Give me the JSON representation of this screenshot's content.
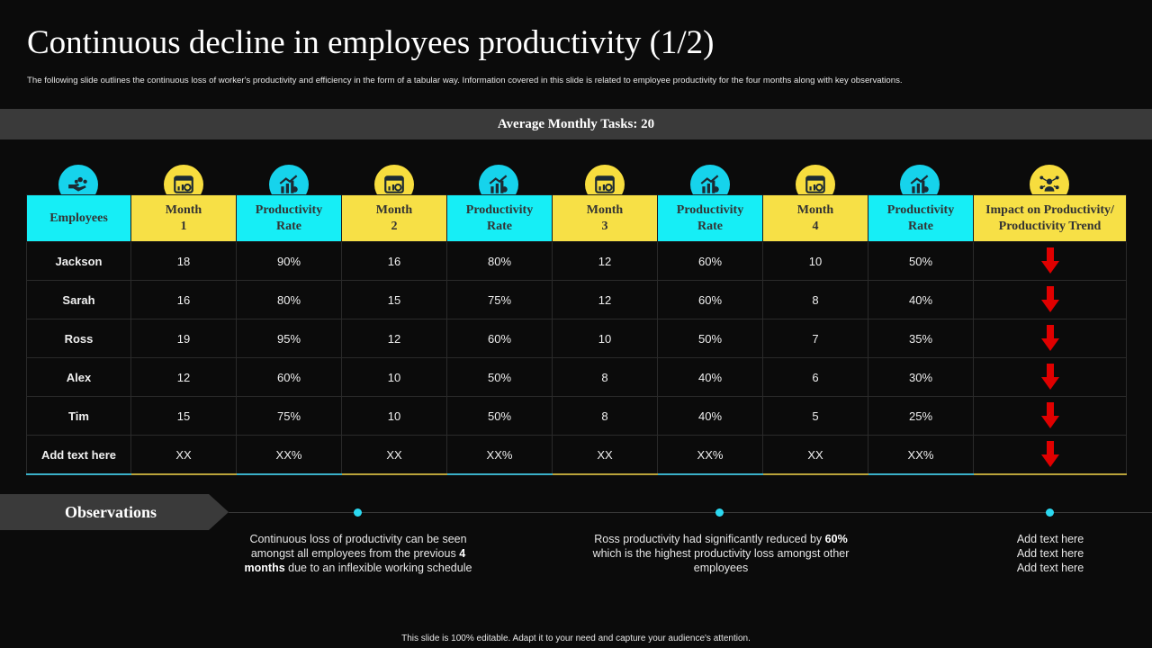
{
  "slide": {
    "title": "Continuous decline in employees productivity (1/2)",
    "subtitle": "The following slide outlines the continuous loss of worker's productivity and efficiency in the form of a tabular way. Information covered in this slide is related to employee productivity for the four months along with key observations.",
    "average_bar": "Average Monthly Tasks: 20",
    "footer": "This slide is 100% editable. Adapt it to your need and capture your audience's attention."
  },
  "table": {
    "headers": {
      "employees": "Employees",
      "month1": [
        "Month",
        "1"
      ],
      "rate1": [
        "Productivity",
        "Rate"
      ],
      "month2": [
        "Month",
        "2"
      ],
      "rate2": [
        "Productivity",
        "Rate"
      ],
      "month3": [
        "Month",
        "3"
      ],
      "rate3": [
        "Productivity",
        "Rate"
      ],
      "month4": [
        "Month",
        "4"
      ],
      "rate4": [
        "Productivity",
        "Rate"
      ],
      "impact": [
        "Impact on Productivity/",
        "Productivity Trend"
      ]
    },
    "header_icons": [
      "hand-coins-icon",
      "calendar-chart-icon",
      "growth-chart-icon",
      "calendar-chart-icon",
      "growth-chart-icon",
      "calendar-chart-icon",
      "growth-chart-icon",
      "calendar-chart-icon",
      "growth-chart-icon",
      "network-person-icon"
    ],
    "rows": [
      {
        "name": "Jackson",
        "cells": [
          "18",
          "90%",
          "16",
          "80%",
          "12",
          "60%",
          "10",
          "50%"
        ],
        "trend": "down"
      },
      {
        "name": "Sarah",
        "cells": [
          "16",
          "80%",
          "15",
          "75%",
          "12",
          "60%",
          "8",
          "40%"
        ],
        "trend": "down"
      },
      {
        "name": "Ross",
        "cells": [
          "19",
          "95%",
          "12",
          "60%",
          "10",
          "50%",
          "7",
          "35%"
        ],
        "trend": "down"
      },
      {
        "name": "Alex",
        "cells": [
          "12",
          "60%",
          "10",
          "50%",
          "8",
          "40%",
          "6",
          "30%"
        ],
        "trend": "down"
      },
      {
        "name": "Tim",
        "cells": [
          "15",
          "75%",
          "10",
          "50%",
          "8",
          "40%",
          "5",
          "25%"
        ],
        "trend": "down"
      },
      {
        "name": "Add text here",
        "cells": [
          "XX",
          "XX%",
          "XX",
          "XX%",
          "XX",
          "XX%",
          "XX",
          "XX%"
        ],
        "trend": "down"
      }
    ]
  },
  "observations": {
    "label": "Observations",
    "items": [
      {
        "pre": "Continuous loss of productivity can be seen amongst all employees from the previous ",
        "bold": "4 months",
        "post": " due to an inflexible working schedule"
      },
      {
        "pre": "Ross productivity had significantly reduced by ",
        "bold": "60%",
        "post": " which is the highest productivity loss amongst other employees"
      },
      {
        "lines": [
          "Add text here",
          "Add text here",
          "Add text here"
        ]
      }
    ]
  },
  "colors": {
    "background": "#0b0b0b",
    "cyan": "#16eef6",
    "yellow": "#f7e046",
    "bar": "#3a3a3a",
    "arrow": "#e00000"
  }
}
